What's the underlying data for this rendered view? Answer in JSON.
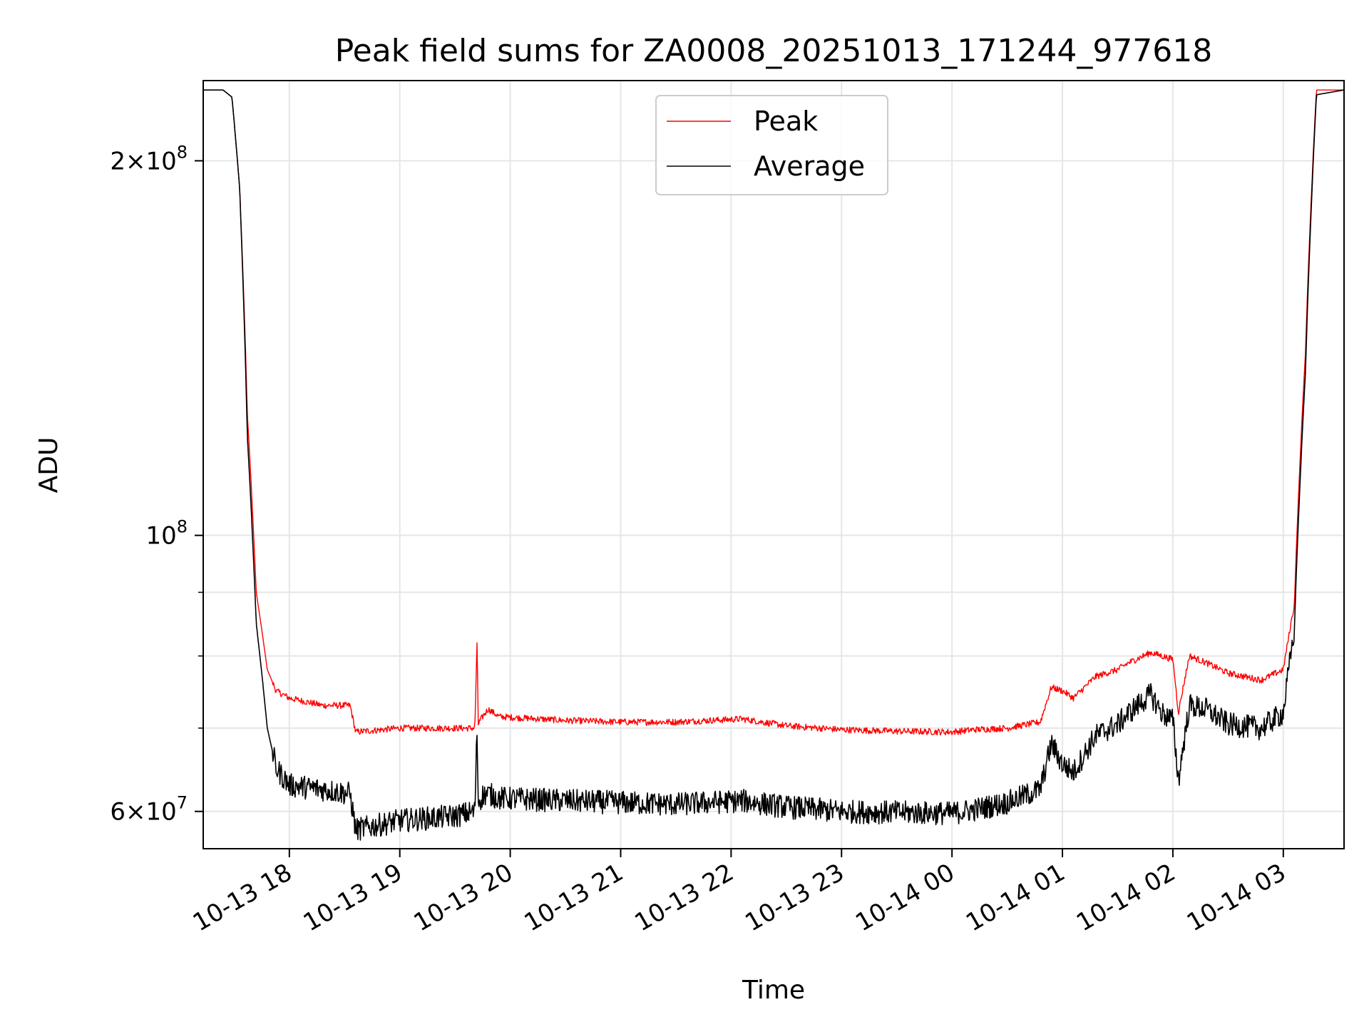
{
  "chart_data": {
    "type": "line",
    "title": "Peak field sums for ZA0008_20251013_171244_977618",
    "xlabel": "Time",
    "ylabel": "ADU",
    "yscale": "log",
    "grid": true,
    "legend_position": "top-center",
    "xlim_hours": [
      17.22,
      27.55
    ],
    "ylim": [
      56000000,
      232000000
    ],
    "x_ticks": [
      {
        "hour": 18,
        "label": "10-13 18"
      },
      {
        "hour": 19,
        "label": "10-13 19"
      },
      {
        "hour": 20,
        "label": "10-13 20"
      },
      {
        "hour": 21,
        "label": "10-13 21"
      },
      {
        "hour": 22,
        "label": "10-13 22"
      },
      {
        "hour": 23,
        "label": "10-13 23"
      },
      {
        "hour": 24,
        "label": "10-14 00"
      },
      {
        "hour": 25,
        "label": "10-14 01"
      },
      {
        "hour": 26,
        "label": "10-14 02"
      },
      {
        "hour": 27,
        "label": "10-14 03"
      }
    ],
    "y_ticks": [
      {
        "value": 60000000,
        "mantissa": "6",
        "exponent": "7"
      },
      {
        "value": 100000000,
        "mantissa": "",
        "exponent": "8"
      },
      {
        "value": 200000000,
        "mantissa": "2",
        "exponent": "8"
      }
    ],
    "y_minor_ticks": [
      70000000,
      80000000,
      90000000
    ],
    "series": [
      {
        "name": "Peak",
        "color": "#ff0000",
        "x": [
          17.22,
          17.4,
          17.48,
          17.55,
          17.62,
          17.7,
          17.8,
          17.88,
          18.0,
          18.3,
          18.55,
          18.6,
          19.0,
          19.5,
          19.68,
          19.7,
          19.71,
          19.75,
          19.8,
          19.9,
          20.5,
          21.0,
          21.5,
          22.1,
          22.5,
          23.0,
          23.5,
          24.0,
          24.2,
          24.5,
          24.8,
          24.9,
          25.0,
          25.1,
          25.3,
          25.5,
          25.6,
          25.8,
          25.9,
          26.0,
          26.05,
          26.15,
          26.3,
          26.5,
          26.8,
          27.0,
          27.1,
          27.2,
          27.3,
          27.55
        ],
        "y": [
          228000000,
          228000000,
          225000000,
          190000000,
          125000000,
          90000000,
          78000000,
          75000000,
          74000000,
          73000000,
          73000000,
          69500000,
          70000000,
          70000000,
          70000000,
          82000000,
          70500000,
          71500000,
          72500000,
          71500000,
          71000000,
          70800000,
          70800000,
          71200000,
          70300000,
          69800000,
          69600000,
          69500000,
          69800000,
          70000000,
          70800000,
          75500000,
          75000000,
          74000000,
          77000000,
          78000000,
          79000000,
          80500000,
          80000000,
          79500000,
          72000000,
          80000000,
          79000000,
          77500000,
          76500000,
          78000000,
          88000000,
          140000000,
          228000000,
          228000000
        ]
      },
      {
        "name": "Average",
        "color": "#000000",
        "x": [
          17.22,
          17.4,
          17.48,
          17.55,
          17.62,
          17.7,
          17.8,
          17.88,
          18.0,
          18.3,
          18.55,
          18.6,
          19.0,
          19.5,
          19.68,
          19.7,
          19.71,
          19.75,
          19.8,
          19.9,
          20.5,
          21.0,
          21.5,
          22.1,
          22.5,
          23.0,
          23.5,
          24.0,
          24.2,
          24.5,
          24.8,
          24.9,
          25.0,
          25.1,
          25.3,
          25.5,
          25.6,
          25.8,
          25.9,
          26.0,
          26.05,
          26.15,
          26.3,
          26.5,
          26.8,
          27.0,
          27.1,
          27.2,
          27.3,
          27.55
        ],
        "y": [
          228000000,
          228000000,
          225000000,
          190000000,
          120000000,
          85000000,
          70000000,
          65000000,
          63000000,
          62500000,
          62000000,
          58000000,
          59000000,
          59500000,
          60000000,
          70000000,
          61000000,
          61800000,
          62000000,
          61500000,
          61200000,
          61000000,
          60800000,
          61200000,
          60500000,
          60000000,
          59900000,
          59800000,
          60200000,
          61000000,
          62500000,
          68000000,
          65500000,
          64500000,
          69000000,
          70500000,
          72000000,
          74500000,
          72000000,
          71000000,
          63500000,
          73000000,
          72500000,
          70500000,
          70000000,
          72000000,
          84000000,
          135000000,
          226000000,
          228000000
        ]
      }
    ]
  }
}
